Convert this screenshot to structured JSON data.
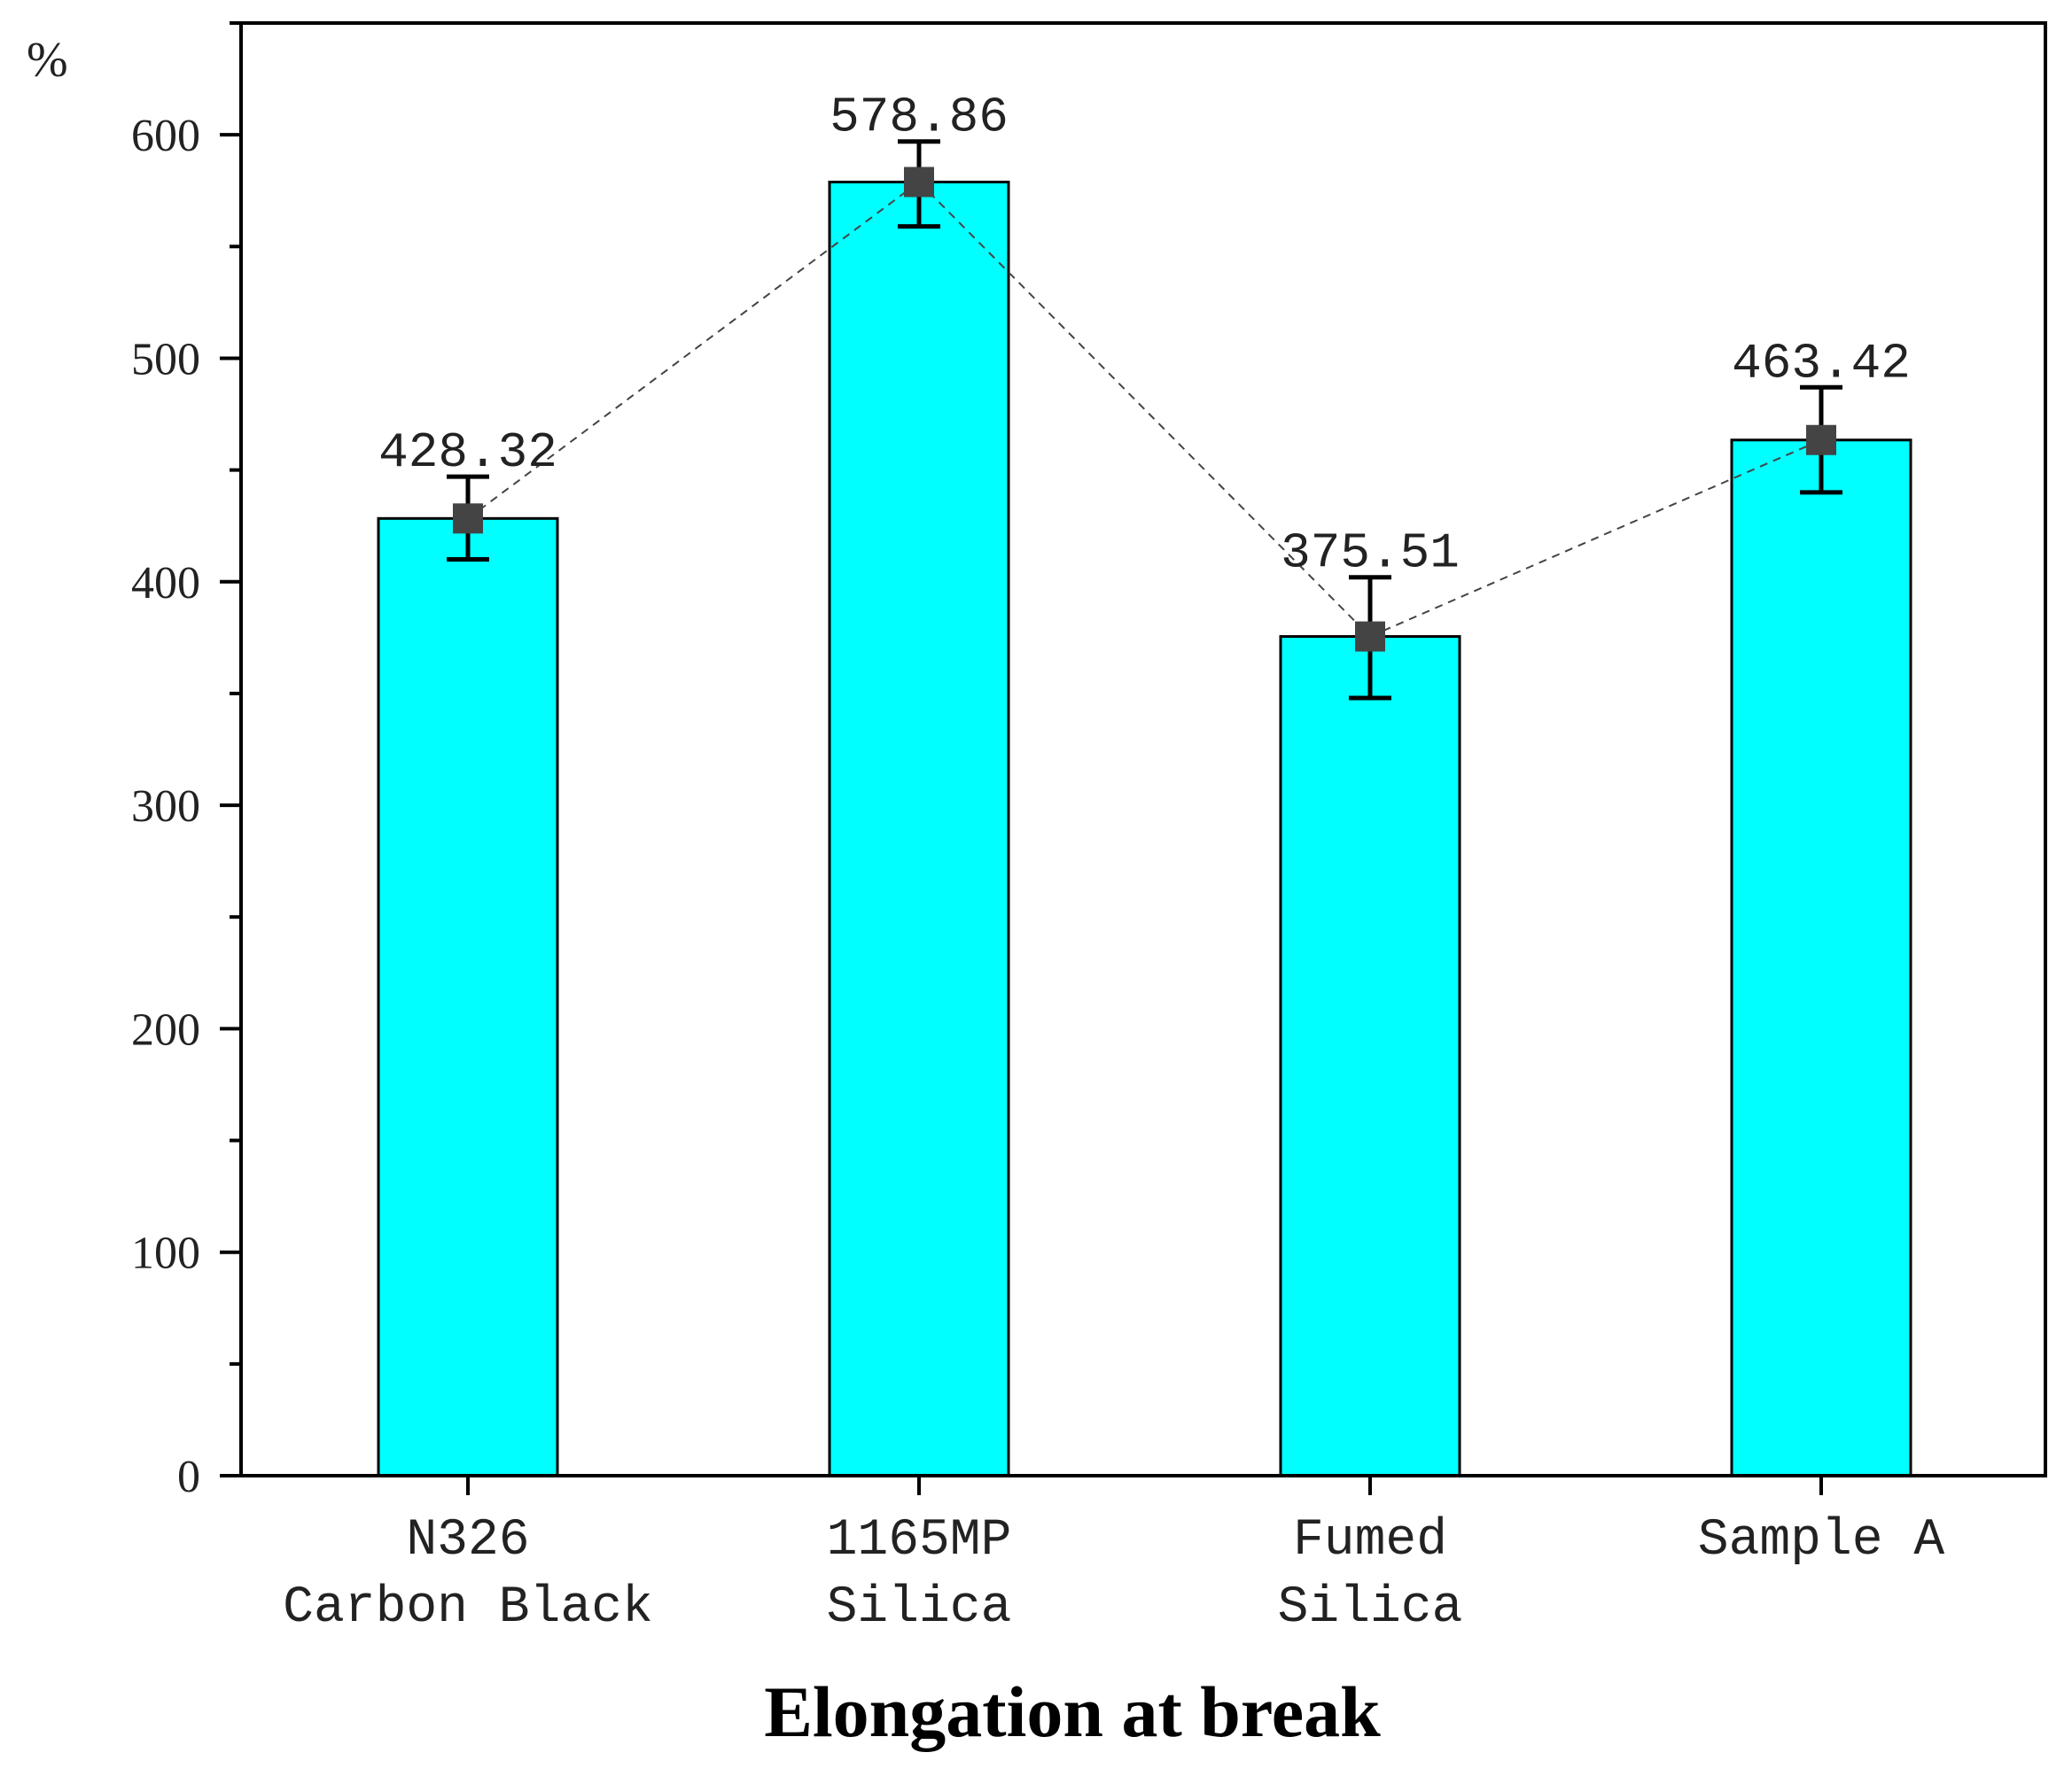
{
  "chart_data": {
    "type": "bar",
    "title": "",
    "xlabel": "Elongation at break",
    "ylabel": "%",
    "ylim": [
      0,
      650
    ],
    "yticks": [
      0,
      100,
      200,
      300,
      400,
      500,
      600
    ],
    "grid": false,
    "categories": [
      [
        "N326",
        "Carbon Black"
      ],
      [
        "1165MP",
        "Silica"
      ],
      [
        "Fumed",
        "Silica"
      ],
      [
        "Sample A"
      ]
    ],
    "values": [
      428.32,
      578.86,
      375.51,
      463.42
    ],
    "value_labels": [
      "428.32",
      "578.86",
      "375.51",
      "463.42"
    ],
    "error_bars": [
      {
        "low": 410,
        "high": 447
      },
      {
        "low": 559,
        "high": 597
      },
      {
        "low": 348,
        "high": 402
      },
      {
        "low": 440,
        "high": 487
      }
    ],
    "colors": {
      "bar_fill": "#00ffff",
      "bar_stroke": "#000000",
      "marker": "#444444",
      "line": "#444444"
    }
  }
}
